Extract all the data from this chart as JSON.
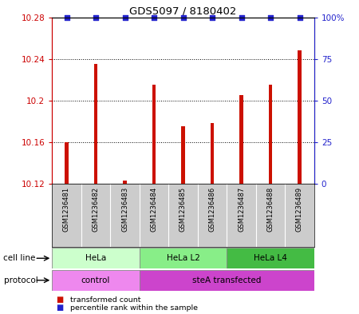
{
  "title": "GDS5097 / 8180402",
  "samples": [
    "GSM1236481",
    "GSM1236482",
    "GSM1236483",
    "GSM1236484",
    "GSM1236485",
    "GSM1236486",
    "GSM1236487",
    "GSM1236488",
    "GSM1236489"
  ],
  "bar_values": [
    10.16,
    10.235,
    10.123,
    10.215,
    10.175,
    10.178,
    10.205,
    10.215,
    10.248
  ],
  "percentile_values": [
    100,
    100,
    100,
    100,
    100,
    100,
    100,
    100,
    100
  ],
  "bar_bottom": 10.12,
  "ylim_left": [
    10.12,
    10.28
  ],
  "ylim_right": [
    0,
    100
  ],
  "yticks_left": [
    10.12,
    10.16,
    10.2,
    10.24,
    10.28
  ],
  "ytick_labels_left": [
    "10.12",
    "10.16",
    "10.2",
    "10.24",
    "10.28"
  ],
  "yticks_right": [
    0,
    25,
    50,
    75,
    100
  ],
  "ytick_labels_right": [
    "0",
    "25",
    "50",
    "75",
    "100%"
  ],
  "bar_color": "#CC1100",
  "dot_color": "#2222CC",
  "cell_line_groups": [
    {
      "label": "HeLa",
      "start": 0,
      "end": 3,
      "color": "#CCFFCC"
    },
    {
      "label": "HeLa L2",
      "start": 3,
      "end": 6,
      "color": "#88EE88"
    },
    {
      "label": "HeLa L4",
      "start": 6,
      "end": 9,
      "color": "#44BB44"
    }
  ],
  "protocol_groups": [
    {
      "label": "control",
      "start": 0,
      "end": 3,
      "color": "#EE88EE"
    },
    {
      "label": "steA transfected",
      "start": 3,
      "end": 9,
      "color": "#CC44CC"
    }
  ],
  "cell_line_label": "cell line",
  "protocol_label": "protocol",
  "legend_red_label": "transformed count",
  "legend_blue_label": "percentile rank within the sample",
  "left_tick_color": "#CC0000",
  "right_tick_color": "#2222CC",
  "bar_width": 0.12
}
